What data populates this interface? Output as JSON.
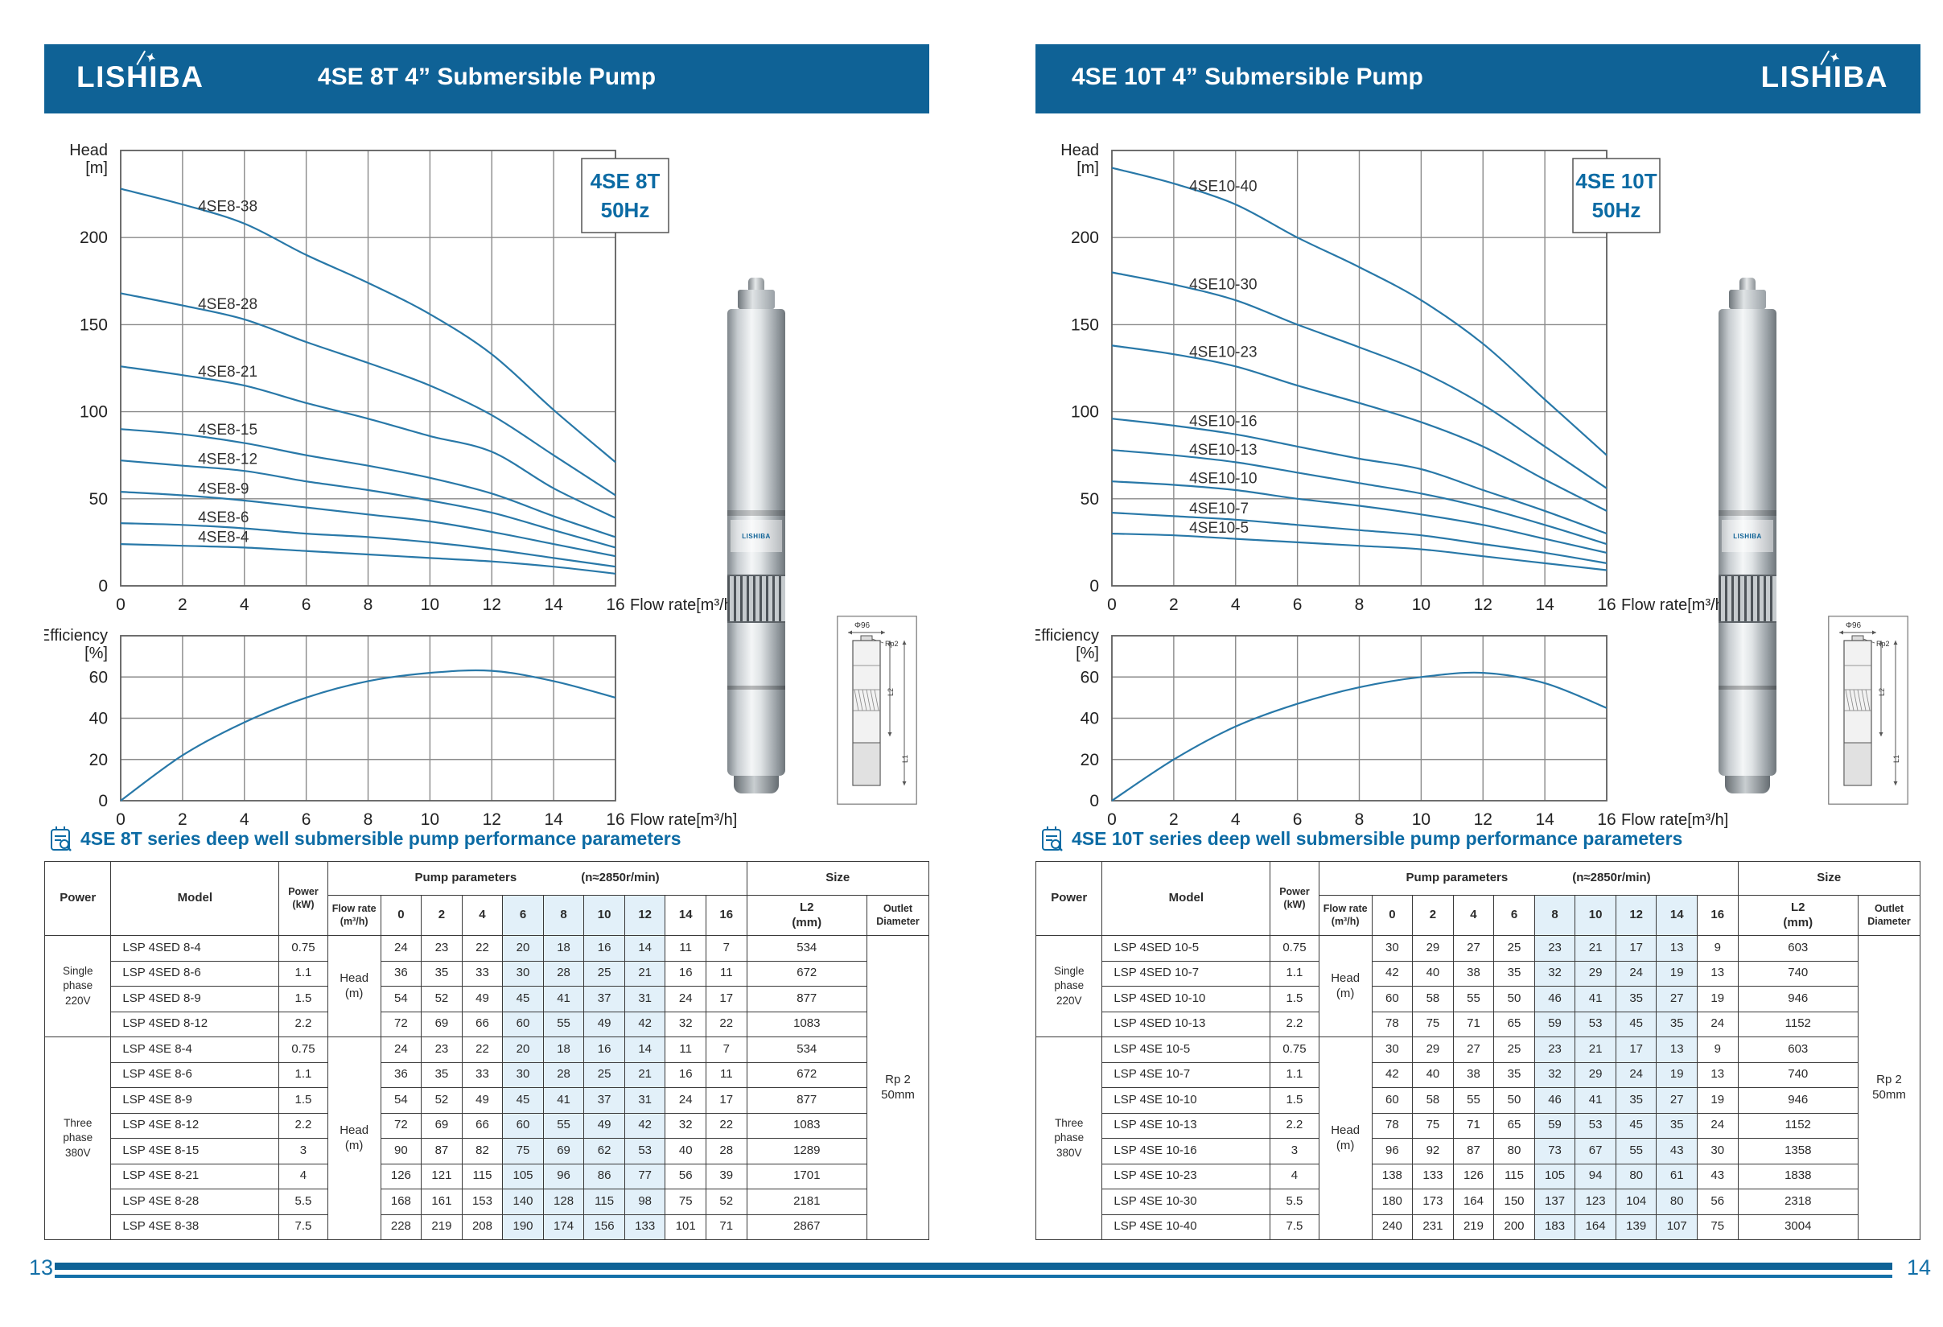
{
  "pages": [
    {
      "header": {
        "logo": "LISHIBA",
        "title": "4SE 8T 4”  Submersible Pump"
      },
      "table_title": "4SE 8T series deep well submersible pump performance parameters",
      "page_number": "13",
      "table": {
        "col_headers": {
          "power": "Power",
          "model": "Model",
          "power_kw": [
            "Power",
            "(kW)"
          ],
          "pump_params": "Pump parameters",
          "speed": "(n≈2850r/min)",
          "size": "Size",
          "flow_rate": [
            "Flow rate",
            "(m³/h)"
          ],
          "flow_values": [
            "0",
            "2",
            "4",
            "6",
            "8",
            "10",
            "12",
            "14",
            "16"
          ],
          "l2": [
            "L2",
            "(mm)"
          ],
          "outlet": [
            "Outlet",
            "Diameter"
          ]
        },
        "head_unit": [
          "Head",
          "(m)"
        ],
        "outlet_value": [
          "Rp 2",
          "50mm"
        ],
        "highlight_flow_cols": [
          3,
          4,
          5,
          6
        ],
        "groups": [
          {
            "power_label": [
              "Single",
              "phase",
              "220V"
            ],
            "rows": [
              {
                "model": "LSP 4SED 8-4",
                "kw": "0.75",
                "head": [
                  24,
                  23,
                  22,
                  20,
                  18,
                  16,
                  14,
                  11,
                  7
                ],
                "l2": "534"
              },
              {
                "model": "LSP 4SED 8-6",
                "kw": "1.1",
                "head": [
                  36,
                  35,
                  33,
                  30,
                  28,
                  25,
                  21,
                  16,
                  11
                ],
                "l2": "672"
              },
              {
                "model": "LSP 4SED 8-9",
                "kw": "1.5",
                "head": [
                  54,
                  52,
                  49,
                  45,
                  41,
                  37,
                  31,
                  24,
                  17
                ],
                "l2": "877"
              },
              {
                "model": "LSP 4SED 8-12",
                "kw": "2.2",
                "head": [
                  72,
                  69,
                  66,
                  60,
                  55,
                  49,
                  42,
                  32,
                  22
                ],
                "l2": "1083"
              }
            ]
          },
          {
            "power_label": [
              "Three",
              "phase",
              "380V"
            ],
            "rows": [
              {
                "model": "LSP 4SE 8-4",
                "kw": "0.75",
                "head": [
                  24,
                  23,
                  22,
                  20,
                  18,
                  16,
                  14,
                  11,
                  7
                ],
                "l2": "534"
              },
              {
                "model": "LSP 4SE 8-6",
                "kw": "1.1",
                "head": [
                  36,
                  35,
                  33,
                  30,
                  28,
                  25,
                  21,
                  16,
                  11
                ],
                "l2": "672"
              },
              {
                "model": "LSP 4SE 8-9",
                "kw": "1.5",
                "head": [
                  54,
                  52,
                  49,
                  45,
                  41,
                  37,
                  31,
                  24,
                  17
                ],
                "l2": "877"
              },
              {
                "model": "LSP 4SE 8-12",
                "kw": "2.2",
                "head": [
                  72,
                  69,
                  66,
                  60,
                  55,
                  49,
                  42,
                  32,
                  22
                ],
                "l2": "1083"
              },
              {
                "model": "LSP 4SE 8-15",
                "kw": "3",
                "head": [
                  90,
                  87,
                  82,
                  75,
                  69,
                  62,
                  53,
                  40,
                  28
                ],
                "l2": "1289"
              },
              {
                "model": "LSP 4SE 8-21",
                "kw": "4",
                "head": [
                  126,
                  121,
                  115,
                  105,
                  96,
                  86,
                  77,
                  56,
                  39
                ],
                "l2": "1701"
              },
              {
                "model": "LSP 4SE 8-28",
                "kw": "5.5",
                "head": [
                  168,
                  161,
                  153,
                  140,
                  128,
                  115,
                  98,
                  75,
                  52
                ],
                "l2": "2181"
              },
              {
                "model": "LSP 4SE 8-38",
                "kw": "7.5",
                "head": [
                  228,
                  219,
                  208,
                  190,
                  174,
                  156,
                  133,
                  101,
                  71
                ],
                "l2": "2867"
              }
            ]
          }
        ]
      }
    },
    {
      "header": {
        "logo": "LISHIBA",
        "title": "4SE 10T 4”  Submersible Pump"
      },
      "table_title": "4SE 10T series deep well submersible pump performance parameters",
      "page_number": "14",
      "table": {
        "col_headers": {
          "power": "Power",
          "model": "Model",
          "power_kw": [
            "Power",
            "(kW)"
          ],
          "pump_params": "Pump parameters",
          "speed": "(n≈2850r/min)",
          "size": "Size",
          "flow_rate": [
            "Flow rate",
            "(m³/h)"
          ],
          "flow_values": [
            "0",
            "2",
            "4",
            "6",
            "8",
            "10",
            "12",
            "14",
            "16"
          ],
          "l2": [
            "L2",
            "(mm)"
          ],
          "outlet": [
            "Outlet",
            "Diameter"
          ]
        },
        "head_unit": [
          "Head",
          "(m)"
        ],
        "outlet_value": [
          "Rp 2",
          "50mm"
        ],
        "highlight_flow_cols": [
          4,
          5,
          6,
          7
        ],
        "groups": [
          {
            "power_label": [
              "Single",
              "phase",
              "220V"
            ],
            "rows": [
              {
                "model": "LSP 4SED 10-5",
                "kw": "0.75",
                "head": [
                  30,
                  29,
                  27,
                  25,
                  23,
                  21,
                  17,
                  13,
                  9
                ],
                "l2": "603"
              },
              {
                "model": "LSP 4SED 10-7",
                "kw": "1.1",
                "head": [
                  42,
                  40,
                  38,
                  35,
                  32,
                  29,
                  24,
                  19,
                  13
                ],
                "l2": "740"
              },
              {
                "model": "LSP 4SED 10-10",
                "kw": "1.5",
                "head": [
                  60,
                  58,
                  55,
                  50,
                  46,
                  41,
                  35,
                  27,
                  19
                ],
                "l2": "946"
              },
              {
                "model": "LSP 4SED 10-13",
                "kw": "2.2",
                "head": [
                  78,
                  75,
                  71,
                  65,
                  59,
                  53,
                  45,
                  35,
                  24
                ],
                "l2": "1152"
              }
            ]
          },
          {
            "power_label": [
              "Three",
              "phase",
              "380V"
            ],
            "rows": [
              {
                "model": "LSP 4SE 10-5",
                "kw": "0.75",
                "head": [
                  30,
                  29,
                  27,
                  25,
                  23,
                  21,
                  17,
                  13,
                  9
                ],
                "l2": "603"
              },
              {
                "model": "LSP 4SE 10-7",
                "kw": "1.1",
                "head": [
                  42,
                  40,
                  38,
                  35,
                  32,
                  29,
                  24,
                  19,
                  13
                ],
                "l2": "740"
              },
              {
                "model": "LSP 4SE 10-10",
                "kw": "1.5",
                "head": [
                  60,
                  58,
                  55,
                  50,
                  46,
                  41,
                  35,
                  27,
                  19
                ],
                "l2": "946"
              },
              {
                "model": "LSP 4SE 10-13",
                "kw": "2.2",
                "head": [
                  78,
                  75,
                  71,
                  65,
                  59,
                  53,
                  45,
                  35,
                  24
                ],
                "l2": "1152"
              },
              {
                "model": "LSP 4SE 10-16",
                "kw": "3",
                "head": [
                  96,
                  92,
                  87,
                  80,
                  73,
                  67,
                  55,
                  43,
                  30
                ],
                "l2": "1358"
              },
              {
                "model": "LSP 4SE 10-23",
                "kw": "4",
                "head": [
                  138,
                  133,
                  126,
                  115,
                  105,
                  94,
                  80,
                  61,
                  43
                ],
                "l2": "1838"
              },
              {
                "model": "LSP 4SE 10-30",
                "kw": "5.5",
                "head": [
                  180,
                  173,
                  164,
                  150,
                  137,
                  123,
                  104,
                  80,
                  56
                ],
                "l2": "2318"
              },
              {
                "model": "LSP 4SE 10-40",
                "kw": "7.5",
                "head": [
                  240,
                  231,
                  219,
                  200,
                  183,
                  164,
                  139,
                  107,
                  75
                ],
                "l2": "3004"
              }
            ]
          }
        ]
      }
    }
  ],
  "chart_data": [
    {
      "id": "head-4se8",
      "kind": "head",
      "type": "line",
      "title_lines": [
        "4SE 8T",
        "50Hz"
      ],
      "ylabel_lines": [
        "Head",
        "[m]"
      ],
      "xlabel": "Flow rate[m³/h]",
      "xlim": [
        0,
        16
      ],
      "ylim": [
        0,
        250
      ],
      "xticks": [
        0,
        2,
        4,
        6,
        8,
        10,
        12,
        14,
        16
      ],
      "yticks": [
        0,
        50,
        100,
        150,
        200
      ],
      "x": [
        0,
        2,
        4,
        6,
        8,
        10,
        12,
        14,
        16
      ],
      "series_labels": true,
      "series": [
        {
          "name": "4SE8-38",
          "values": [
            228,
            219,
            208,
            190,
            174,
            156,
            133,
            101,
            71
          ]
        },
        {
          "name": "4SE8-28",
          "values": [
            168,
            161,
            153,
            140,
            128,
            115,
            98,
            75,
            52
          ]
        },
        {
          "name": "4SE8-21",
          "values": [
            126,
            121,
            115,
            105,
            96,
            86,
            77,
            56,
            39
          ]
        },
        {
          "name": "4SE8-15",
          "values": [
            90,
            87,
            82,
            75,
            69,
            62,
            53,
            40,
            28
          ]
        },
        {
          "name": "4SE8-12",
          "values": [
            72,
            69,
            66,
            60,
            55,
            49,
            42,
            32,
            22
          ]
        },
        {
          "name": "4SE8-9",
          "values": [
            54,
            52,
            49,
            45,
            41,
            37,
            31,
            24,
            17
          ]
        },
        {
          "name": "4SE8-6",
          "values": [
            36,
            35,
            33,
            30,
            28,
            25,
            21,
            16,
            11
          ]
        },
        {
          "name": "4SE8-4",
          "values": [
            24,
            23,
            22,
            20,
            18,
            16,
            14,
            11,
            7
          ]
        }
      ]
    },
    {
      "id": "eff-4se8",
      "kind": "efficiency",
      "type": "line",
      "ylabel_lines": [
        "Efficiency",
        "[%]"
      ],
      "xlabel": "Flow rate[m³/h]",
      "xlim": [
        0,
        16
      ],
      "ylim": [
        0,
        80
      ],
      "xticks": [
        0,
        2,
        4,
        6,
        8,
        10,
        12,
        14,
        16
      ],
      "yticks": [
        0,
        20,
        40,
        60
      ],
      "x": [
        0,
        2,
        4,
        6,
        8,
        10,
        12,
        14,
        16
      ],
      "series_labels": false,
      "series": [
        {
          "name": "efficiency",
          "values": [
            0,
            22,
            38,
            50,
            58,
            62,
            63,
            58,
            50
          ]
        }
      ]
    },
    {
      "id": "head-4se10",
      "kind": "head",
      "type": "line",
      "title_lines": [
        "4SE 10T",
        "50Hz"
      ],
      "ylabel_lines": [
        "Head",
        "[m]"
      ],
      "xlabel": "Flow rate[m³/h]",
      "xlim": [
        0,
        16
      ],
      "ylim": [
        0,
        250
      ],
      "xticks": [
        0,
        2,
        4,
        6,
        8,
        10,
        12,
        14,
        16
      ],
      "yticks": [
        0,
        50,
        100,
        150,
        200
      ],
      "x": [
        0,
        2,
        4,
        6,
        8,
        10,
        12,
        14,
        16
      ],
      "series_labels": true,
      "series": [
        {
          "name": "4SE10-40",
          "values": [
            240,
            231,
            219,
            200,
            183,
            164,
            139,
            107,
            75
          ]
        },
        {
          "name": "4SE10-30",
          "values": [
            180,
            173,
            164,
            150,
            137,
            123,
            104,
            80,
            56
          ]
        },
        {
          "name": "4SE10-23",
          "values": [
            138,
            133,
            126,
            115,
            105,
            94,
            80,
            61,
            43
          ]
        },
        {
          "name": "4SE10-16",
          "values": [
            96,
            92,
            87,
            80,
            73,
            67,
            55,
            43,
            30
          ]
        },
        {
          "name": "4SE10-13",
          "values": [
            78,
            75,
            71,
            65,
            59,
            53,
            45,
            35,
            24
          ]
        },
        {
          "name": "4SE10-10",
          "values": [
            60,
            58,
            55,
            50,
            46,
            41,
            35,
            27,
            19
          ]
        },
        {
          "name": "4SE10-7",
          "values": [
            42,
            40,
            38,
            35,
            32,
            29,
            24,
            19,
            13
          ]
        },
        {
          "name": "4SE10-5",
          "values": [
            30,
            29,
            27,
            25,
            23,
            21,
            17,
            13,
            9
          ]
        }
      ]
    },
    {
      "id": "eff-4se10",
      "kind": "efficiency",
      "type": "line",
      "ylabel_lines": [
        "Efficiency",
        "[%]"
      ],
      "xlabel": "Flow rate[m³/h]",
      "xlim": [
        0,
        16
      ],
      "ylim": [
        0,
        80
      ],
      "xticks": [
        0,
        2,
        4,
        6,
        8,
        10,
        12,
        14,
        16
      ],
      "yticks": [
        0,
        20,
        40,
        60
      ],
      "x": [
        0,
        2,
        4,
        6,
        8,
        10,
        12,
        14,
        16
      ],
      "series_labels": false,
      "series": [
        {
          "name": "efficiency",
          "values": [
            0,
            20,
            36,
            47,
            55,
            60,
            62,
            57,
            45
          ]
        }
      ]
    }
  ],
  "dimension": {
    "diameter": "Φ96",
    "outlet_thread": "Rp2",
    "upper_length": "L2",
    "total_length": "L1"
  },
  "pump_label": "LISHIBA",
  "colors": {
    "header_band": "#0F6296",
    "accent_blue": "#0C6BA4",
    "curve": "#2878A8",
    "table_highlight": "#E2F0F9",
    "grid": "#8A8A8A",
    "page_number": "#1470A8"
  }
}
